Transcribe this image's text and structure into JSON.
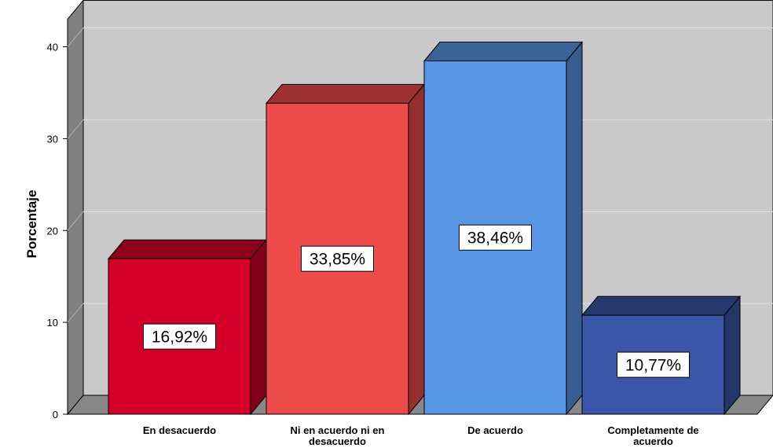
{
  "chart_data": {
    "type": "bar",
    "categories": [
      "En desacuerdo",
      "Ni en acuerdo ni en desacuerdo",
      "De acuerdo",
      "Completamente de acuerdo"
    ],
    "category_lines": [
      [
        "En desacuerdo"
      ],
      [
        "Ni en acuerdo ni en",
        "desacuerdo"
      ],
      [
        "De acuerdo"
      ],
      [
        "Completamente de",
        "acuerdo"
      ]
    ],
    "values": [
      16.92,
      33.85,
      38.46,
      10.77
    ],
    "data_labels": [
      "16,92%",
      "33,85%",
      "38,46%",
      "10,77%"
    ],
    "colors": [
      "#d4002a",
      "#ee4b4b",
      "#5896e6",
      "#3a56a8"
    ],
    "ylabel": "Porcentaje",
    "ylim": [
      0,
      43
    ],
    "yticks": [
      0,
      10,
      20,
      30,
      40
    ],
    "grid": true,
    "style": "3d"
  }
}
